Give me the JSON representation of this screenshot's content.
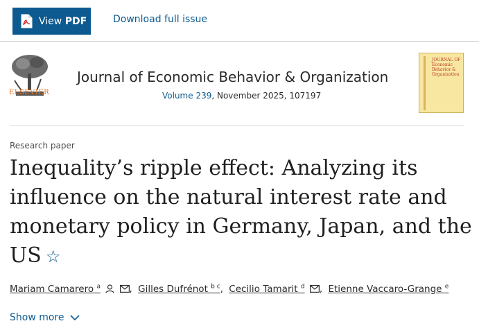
{
  "toolbar": {
    "view_pdf_prefix": "View ",
    "view_pdf_bold": "PDF",
    "download_label": "Download full issue"
  },
  "journal": {
    "publisher": "ELSEVIER",
    "title": "Journal of Economic Behavior & Organization",
    "volume_link": "Volume 239",
    "volume_rest": ", November 2025, 107197",
    "cover_text_1": "JOURNAL OF",
    "cover_text_2": "Economic",
    "cover_text_3": "Behavior &",
    "cover_text_4": "Organization"
  },
  "article": {
    "type": "Research paper",
    "title": "Inequality’s ripple effect: Analyzing its influence on the natural interest rate and monetary policy in Germany, Japan, and the US",
    "authors": [
      {
        "name": "Mariam Camarero",
        "sup": "a"
      },
      {
        "name": "Gilles Dufrénot",
        "sup": "b c"
      },
      {
        "name": "Cecilio Tamarit",
        "sup": "d"
      },
      {
        "name": "Etienne Vaccaro-Grange",
        "sup": "e"
      }
    ],
    "show_more": "Show more"
  },
  "colors": {
    "accent": "#0c5a8f",
    "publisher_orange": "#e9711c"
  }
}
